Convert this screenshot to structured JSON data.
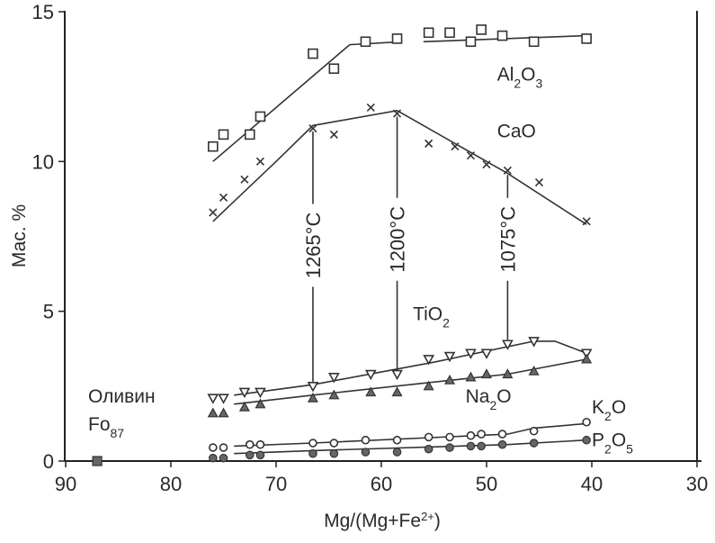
{
  "chart_data": {
    "type": "scatter",
    "ylabel": "Мас. %",
    "xlabel": {
      "base": "Mg/(Mg+Fe",
      "sup": "2+",
      "tail": ")"
    },
    "xlim": [
      90,
      30
    ],
    "ylim": [
      0,
      15
    ],
    "x_ticks": [
      90,
      80,
      70,
      60,
      50,
      40,
      30
    ],
    "y_ticks": [
      0,
      5,
      10,
      15
    ],
    "grid": false,
    "legend": "none",
    "series": [
      {
        "name": "Al2O3",
        "label_parts": [
          {
            "t": "Al"
          },
          {
            "t": "2",
            "sub": true
          },
          {
            "t": "O"
          },
          {
            "t": "3",
            "sub": true
          }
        ],
        "marker": "open-square",
        "label_pos": {
          "x": 49,
          "y": 12.7
        },
        "points": [
          [
            76,
            10.5
          ],
          [
            75,
            10.9
          ],
          [
            72.5,
            10.9
          ],
          [
            71.5,
            11.5
          ],
          [
            66.5,
            13.6
          ],
          [
            64.5,
            13.1
          ],
          [
            61.5,
            14.0
          ],
          [
            58.5,
            14.1
          ],
          [
            55.5,
            14.3
          ],
          [
            53.5,
            14.3
          ],
          [
            51.5,
            14.0
          ],
          [
            50.5,
            14.4
          ],
          [
            48.5,
            14.2
          ],
          [
            45.5,
            14.0
          ],
          [
            40.5,
            14.1
          ]
        ],
        "trend": [
          [
            [
              76,
              10.0
            ],
            [
              71,
              11.5
            ],
            [
              63,
              13.9
            ],
            [
              58,
              14.0
            ]
          ],
          [
            [
              56,
              14.0
            ],
            [
              40.5,
              14.2
            ]
          ]
        ]
      },
      {
        "name": "CaO",
        "label_parts": [
          {
            "t": "CaO"
          }
        ],
        "marker": "cross",
        "label_pos": {
          "x": 49,
          "y": 10.8
        },
        "points": [
          [
            76,
            8.3
          ],
          [
            75,
            8.8
          ],
          [
            73,
            9.4
          ],
          [
            71.5,
            10.0
          ],
          [
            66.5,
            11.1
          ],
          [
            64.5,
            10.9
          ],
          [
            61,
            11.8
          ],
          [
            58.5,
            11.6
          ],
          [
            55.5,
            10.6
          ],
          [
            53,
            10.5
          ],
          [
            51.5,
            10.2
          ],
          [
            50,
            9.9
          ],
          [
            48,
            9.7
          ],
          [
            45,
            9.3
          ],
          [
            40.5,
            8.0
          ]
        ],
        "trend": [
          [
            [
              76,
              8.0
            ],
            [
              70,
              10.0
            ],
            [
              66.5,
              11.2
            ],
            [
              58.5,
              11.7
            ],
            [
              48,
              9.6
            ],
            [
              40.5,
              7.9
            ]
          ]
        ]
      },
      {
        "name": "TiO2",
        "label_parts": [
          {
            "t": "TiO"
          },
          {
            "t": "2",
            "sub": true
          }
        ],
        "marker": "open-triangle-down",
        "label_pos": {
          "x": 57,
          "y": 4.7
        },
        "points": [
          [
            76,
            2.1
          ],
          [
            75,
            2.1
          ],
          [
            73,
            2.3
          ],
          [
            71.5,
            2.3
          ],
          [
            66.5,
            2.5
          ],
          [
            64.5,
            2.8
          ],
          [
            61,
            2.9
          ],
          [
            58.5,
            2.9
          ],
          [
            55.5,
            3.4
          ],
          [
            53.5,
            3.5
          ],
          [
            51.5,
            3.6
          ],
          [
            50,
            3.6
          ],
          [
            48,
            3.9
          ],
          [
            45.5,
            4.0
          ],
          [
            40.5,
            3.6
          ]
        ],
        "trend": [
          [
            [
              74,
              2.2
            ],
            [
              66.5,
              2.55
            ],
            [
              55,
              3.3
            ],
            [
              45.5,
              4.0
            ],
            [
              43.5,
              4.0
            ],
            [
              40.5,
              3.6
            ]
          ]
        ]
      },
      {
        "name": "Na2O",
        "label_parts": [
          {
            "t": "Na"
          },
          {
            "t": "2",
            "sub": true
          },
          {
            "t": "O"
          }
        ],
        "marker": "filled-triangle",
        "label_pos": {
          "x": 52,
          "y": 1.95
        },
        "points": [
          [
            76,
            1.6
          ],
          [
            75,
            1.6
          ],
          [
            73,
            1.8
          ],
          [
            71.5,
            1.9
          ],
          [
            66.5,
            2.1
          ],
          [
            64.5,
            2.2
          ],
          [
            61,
            2.3
          ],
          [
            58.5,
            2.3
          ],
          [
            55.5,
            2.5
          ],
          [
            53.5,
            2.7
          ],
          [
            51.5,
            2.8
          ],
          [
            50,
            2.9
          ],
          [
            48,
            2.9
          ],
          [
            45.5,
            3.0
          ],
          [
            40.5,
            3.4
          ]
        ],
        "trend": [
          [
            [
              74,
              1.9
            ],
            [
              66.5,
              2.2
            ],
            [
              48,
              2.9
            ],
            [
              40.5,
              3.4
            ]
          ]
        ]
      },
      {
        "name": "K2O",
        "label_parts": [
          {
            "t": "K"
          },
          {
            "t": "2",
            "sub": true
          },
          {
            "t": "O"
          }
        ],
        "marker": "open-circle",
        "label_pos": {
          "x": 40,
          "y": 1.6
        },
        "points": [
          [
            76,
            0.45
          ],
          [
            75,
            0.45
          ],
          [
            72.5,
            0.55
          ],
          [
            71.5,
            0.55
          ],
          [
            66.5,
            0.6
          ],
          [
            64.5,
            0.6
          ],
          [
            61.5,
            0.7
          ],
          [
            58.5,
            0.7
          ],
          [
            55.5,
            0.8
          ],
          [
            53.5,
            0.8
          ],
          [
            51.5,
            0.85
          ],
          [
            50.5,
            0.9
          ],
          [
            48.5,
            0.9
          ],
          [
            45.5,
            1.0
          ],
          [
            40.5,
            1.3
          ]
        ],
        "trend": [
          [
            [
              74,
              0.5
            ],
            [
              66.5,
              0.6
            ],
            [
              48,
              0.9
            ],
            [
              45.5,
              1.1
            ],
            [
              40.5,
              1.25
            ]
          ]
        ]
      },
      {
        "name": "P2O5",
        "label_parts": [
          {
            "t": "P"
          },
          {
            "t": "2",
            "sub": true
          },
          {
            "t": "O"
          },
          {
            "t": "5",
            "sub": true
          }
        ],
        "marker": "filled-circle",
        "label_pos": {
          "x": 40,
          "y": 0.5
        },
        "points": [
          [
            76,
            0.1
          ],
          [
            75,
            0.1
          ],
          [
            72.5,
            0.2
          ],
          [
            71.5,
            0.2
          ],
          [
            66.5,
            0.25
          ],
          [
            64.5,
            0.25
          ],
          [
            61.5,
            0.3
          ],
          [
            58.5,
            0.3
          ],
          [
            55.5,
            0.4
          ],
          [
            53.5,
            0.45
          ],
          [
            51.5,
            0.5
          ],
          [
            50.5,
            0.5
          ],
          [
            48.5,
            0.55
          ],
          [
            45.5,
            0.6
          ],
          [
            40.5,
            0.7
          ]
        ],
        "trend": [
          [
            [
              74,
              0.25
            ],
            [
              66.5,
              0.35
            ],
            [
              48,
              0.55
            ],
            [
              40.5,
              0.7
            ]
          ]
        ]
      }
    ],
    "olivine": {
      "label_line1": "Оливин",
      "label_parts": [
        {
          "t": "Fo"
        },
        {
          "t": "87",
          "sub": true
        }
      ],
      "point": [
        87,
        0
      ]
    },
    "temperatures": [
      {
        "label": "1265°C",
        "x": 66.5,
        "y_top": 11.0,
        "y_bottom": 2.65,
        "label_y": 7.2
      },
      {
        "label": "1200°C",
        "x": 58.5,
        "y_top": 11.5,
        "y_bottom": 3.0,
        "label_y": 7.4
      },
      {
        "label": "1075°C",
        "x": 48,
        "y_top": 9.55,
        "y_bottom": 4.05,
        "label_y": 7.4
      }
    ]
  }
}
